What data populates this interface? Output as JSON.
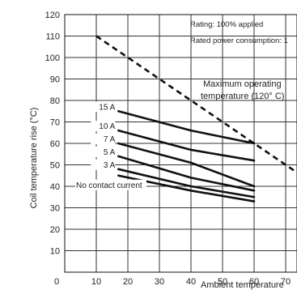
{
  "chart_data": {
    "type": "line",
    "xlabel": "Ambient temperature",
    "ylabel": "Coil temperature rise (°C)",
    "xlim": [
      0,
      80
    ],
    "ylim": [
      0,
      120
    ],
    "x_ticks": [
      0,
      10,
      20,
      30,
      40,
      50,
      60,
      70
    ],
    "y_ticks": [
      10,
      20,
      30,
      40,
      50,
      60,
      70,
      80,
      90,
      100,
      110,
      120
    ],
    "grid": true,
    "series": [
      {
        "name": "15 A",
        "x": [
          17,
          40,
          60
        ],
        "y": [
          75,
          66,
          60
        ]
      },
      {
        "name": "10 A",
        "x": [
          17,
          40,
          60
        ],
        "y": [
          66,
          57,
          52
        ]
      },
      {
        "name": "7 A",
        "x": [
          17,
          40,
          60
        ],
        "y": [
          60,
          51,
          40
        ]
      },
      {
        "name": "5 A",
        "x": [
          17,
          40,
          60
        ],
        "y": [
          54,
          44,
          38
        ]
      },
      {
        "name": "3 A",
        "x": [
          17,
          40,
          60
        ],
        "y": [
          48,
          40,
          35
        ]
      },
      {
        "name": "No contact current",
        "x": [
          17,
          40,
          60
        ],
        "y": [
          45,
          38,
          33
        ]
      }
    ],
    "limit_line": {
      "x": [
        10,
        80
      ],
      "y": [
        110,
        40
      ]
    },
    "annotations": {
      "rating": "Rating: 100% applied",
      "power": "Rated power consumption: 1",
      "max_line1": "Maximum operating",
      "max_line2": "temperature (120° C)"
    }
  }
}
